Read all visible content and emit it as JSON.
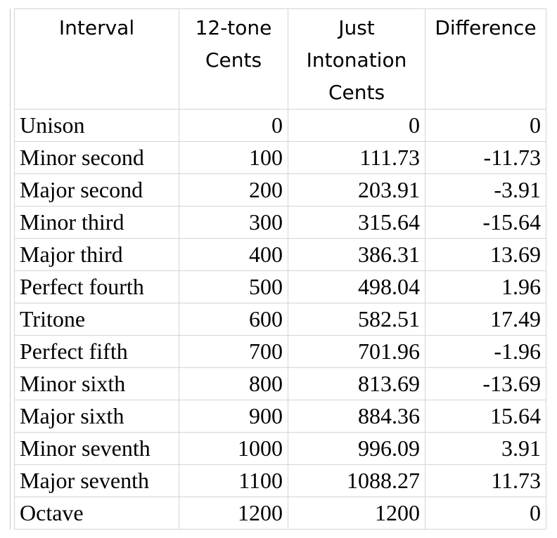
{
  "table": {
    "headers": [
      "Interval",
      "12-tone Cents",
      "Just Intonation Cents",
      "Difference"
    ],
    "rows": [
      [
        "Unison",
        "0",
        "0",
        "0"
      ],
      [
        "Minor second",
        "100",
        "111.73",
        "-11.73"
      ],
      [
        "Major second",
        "200",
        "203.91",
        "-3.91"
      ],
      [
        "Minor third",
        "300",
        "315.64",
        "-15.64"
      ],
      [
        "Major third",
        "400",
        "386.31",
        "13.69"
      ],
      [
        "Perfect fourth",
        "500",
        "498.04",
        "1.96"
      ],
      [
        "Tritone",
        "600",
        "582.51",
        "17.49"
      ],
      [
        "Perfect fifth",
        "700",
        "701.96",
        "-1.96"
      ],
      [
        "Minor sixth",
        "800",
        "813.69",
        "-13.69"
      ],
      [
        "Major sixth",
        "900",
        "884.36",
        "15.64"
      ],
      [
        "Minor seventh",
        "1000",
        "996.09",
        "3.91"
      ],
      [
        "Major seventh",
        "1100",
        "1088.27",
        "11.73"
      ],
      [
        "Octave",
        "1200",
        "1200",
        "0"
      ]
    ]
  },
  "colors": {
    "gridline": "#d4d4d4",
    "text": "#000000",
    "background": "#ffffff"
  }
}
